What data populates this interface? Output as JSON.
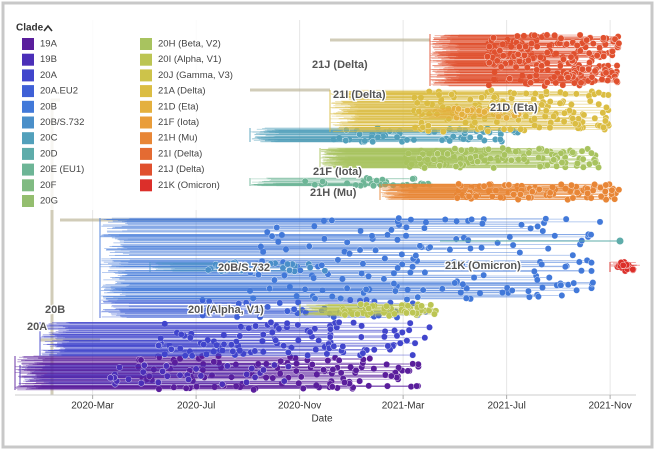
{
  "chart_data": {
    "type": "tree",
    "legend_title": "Clade",
    "series": [
      {
        "name": "19A",
        "color": "#5a1e9c"
      },
      {
        "name": "19B",
        "color": "#4b2fb8"
      },
      {
        "name": "20A",
        "color": "#4145cc"
      },
      {
        "name": "20A.EU2",
        "color": "#3f60d6"
      },
      {
        "name": "20B",
        "color": "#4279d9"
      },
      {
        "name": "20B/S.732",
        "color": "#4a8fc9"
      },
      {
        "name": "20C",
        "color": "#52a0bb"
      },
      {
        "name": "20D",
        "color": "#5eacaa"
      },
      {
        "name": "20E (EU1)",
        "color": "#6db596"
      },
      {
        "name": "20F",
        "color": "#80bb82"
      },
      {
        "name": "20G",
        "color": "#94be6f"
      },
      {
        "name": "20H (Beta, V2)",
        "color": "#a8c35f"
      },
      {
        "name": "20I (Alpha, V1)",
        "color": "#bcc553"
      },
      {
        "name": "20J (Gamma, V3)",
        "color": "#cdc34a"
      },
      {
        "name": "21A (Delta)",
        "color": "#dbbd43"
      },
      {
        "name": "21D (Eta)",
        "color": "#e4b03e"
      },
      {
        "name": "21F (Iota)",
        "color": "#e99d3a"
      },
      {
        "name": "21H (Mu)",
        "color": "#e88636"
      },
      {
        "name": "21I (Delta)",
        "color": "#e46b32"
      },
      {
        "name": "21J (Delta)",
        "color": "#e0502e"
      },
      {
        "name": "21K (Omicron)",
        "color": "#dc2f2a"
      }
    ],
    "annotations": [
      "21J (Delta)",
      "21I (Delta)",
      "21D (Eta)",
      "21F (Iota)",
      "21H (Mu)",
      "21K (Omicron)",
      "20B/S.732",
      "20I (Alpha, V1)",
      "20B",
      "20A"
    ],
    "xlabel": "Date",
    "xlim": [
      "2019-12",
      "2021-12"
    ],
    "xticks": [
      {
        "value": "2020-03",
        "label": "2020-Mar"
      },
      {
        "value": "2020-07",
        "label": "2020-Jul"
      },
      {
        "value": "2020-11",
        "label": "2020-Nov"
      },
      {
        "value": "2021-03",
        "label": "2021-Mar"
      },
      {
        "value": "2021-07",
        "label": "2021-Jul"
      },
      {
        "value": "2021-11",
        "label": "2021-Nov"
      }
    ],
    "grid": true
  }
}
